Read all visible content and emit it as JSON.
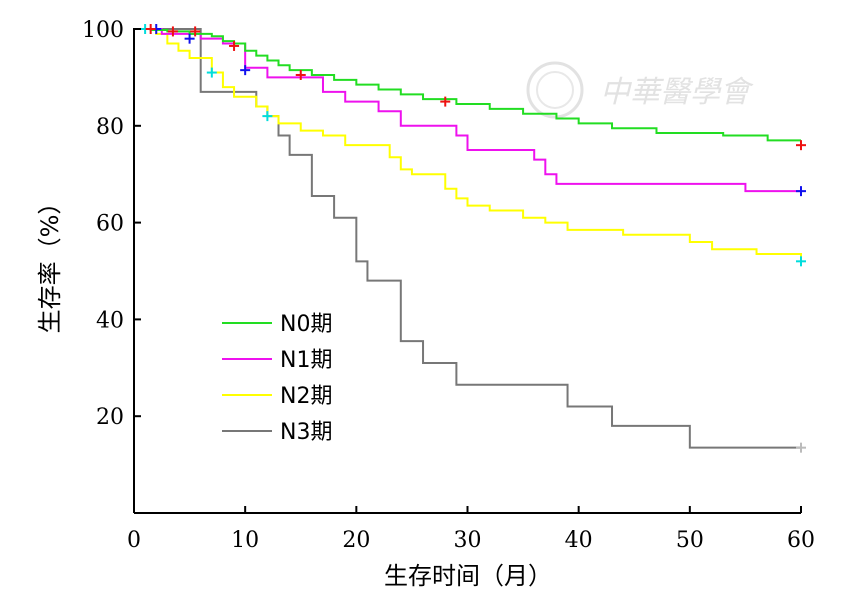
{
  "chart_data": {
    "type": "line",
    "title": "",
    "xlabel": "生存时间（月）",
    "ylabel": "生存率（%）",
    "xlim": [
      0,
      60
    ],
    "ylim": [
      0,
      100
    ],
    "xticks": [
      0,
      10,
      20,
      30,
      40,
      50,
      60
    ],
    "yticks": [
      20,
      40,
      60,
      80,
      100
    ],
    "grid": false,
    "legend_position": "lower-left",
    "watermark": "中華醫學會",
    "series": [
      {
        "name": "N0期",
        "color": "#22dd22",
        "censor_color": "#ee1111",
        "steps": [
          [
            0,
            100
          ],
          [
            1.5,
            99.8
          ],
          [
            3,
            99.5
          ],
          [
            5,
            99.0
          ],
          [
            7,
            98.5
          ],
          [
            8,
            97.5
          ],
          [
            9,
            97
          ],
          [
            10,
            95.5
          ],
          [
            11,
            94.5
          ],
          [
            12,
            93.5
          ],
          [
            13,
            92.5
          ],
          [
            14,
            91.5
          ],
          [
            16,
            90.5
          ],
          [
            18,
            89.5
          ],
          [
            20,
            88.5
          ],
          [
            22,
            87.5
          ],
          [
            24,
            86.5
          ],
          [
            26,
            85.5
          ],
          [
            29,
            84.5
          ],
          [
            32,
            83.5
          ],
          [
            35,
            82.5
          ],
          [
            38,
            81.5
          ],
          [
            40,
            80.5
          ],
          [
            43,
            79.5
          ],
          [
            47,
            78.5
          ],
          [
            53,
            78
          ],
          [
            57,
            77
          ],
          [
            60,
            77
          ]
        ],
        "censored": [
          [
            1.5,
            100
          ],
          [
            3.5,
            99.5
          ],
          [
            5.5,
            99.5
          ],
          [
            9,
            96.5
          ],
          [
            15,
            90.5
          ],
          [
            28,
            85
          ],
          [
            60,
            76
          ]
        ]
      },
      {
        "name": "N1期",
        "color": "#ee11ee",
        "censor_color": "#1111ee",
        "steps": [
          [
            0,
            100
          ],
          [
            2.5,
            99
          ],
          [
            6,
            98
          ],
          [
            8,
            97
          ],
          [
            10,
            92
          ],
          [
            12,
            90
          ],
          [
            17,
            87
          ],
          [
            19,
            85
          ],
          [
            22,
            83
          ],
          [
            24,
            80
          ],
          [
            29,
            78
          ],
          [
            30,
            75
          ],
          [
            34,
            75
          ],
          [
            36,
            73
          ],
          [
            37,
            70
          ],
          [
            38,
            68
          ],
          [
            55,
            68
          ],
          [
            55,
            66.5
          ],
          [
            60,
            66.5
          ]
        ],
        "censored": [
          [
            2,
            100
          ],
          [
            5,
            98
          ],
          [
            10,
            91.5
          ],
          [
            60,
            66.5
          ]
        ]
      },
      {
        "name": "N2期",
        "color": "#ffff00",
        "censor_color": "#00dddd",
        "steps": [
          [
            0,
            100
          ],
          [
            2,
            99
          ],
          [
            3,
            97
          ],
          [
            4,
            95.5
          ],
          [
            5,
            94
          ],
          [
            7,
            91
          ],
          [
            8,
            88
          ],
          [
            9,
            86
          ],
          [
            11,
            84
          ],
          [
            12,
            82
          ],
          [
            13,
            80.5
          ],
          [
            15,
            79
          ],
          [
            17,
            78
          ],
          [
            19,
            76
          ],
          [
            23,
            73.5
          ],
          [
            24,
            71
          ],
          [
            25,
            70
          ],
          [
            28,
            67
          ],
          [
            29,
            65
          ],
          [
            30,
            63.5
          ],
          [
            32,
            62.5
          ],
          [
            35,
            61
          ],
          [
            37,
            60
          ],
          [
            39,
            58.5
          ],
          [
            44,
            57.5
          ],
          [
            50,
            56
          ],
          [
            52,
            54.5
          ],
          [
            56,
            53.5
          ],
          [
            60,
            52
          ]
        ],
        "censored": [
          [
            1,
            100
          ],
          [
            7,
            91
          ],
          [
            12,
            82
          ],
          [
            60,
            52
          ]
        ]
      },
      {
        "name": "N3期",
        "color": "#777777",
        "censor_color": "#bbbbbb",
        "steps": [
          [
            0,
            100
          ],
          [
            6,
            100
          ],
          [
            6,
            87
          ],
          [
            11,
            87
          ],
          [
            11,
            84
          ],
          [
            12,
            82
          ],
          [
            13,
            78
          ],
          [
            14,
            74
          ],
          [
            16,
            65.5
          ],
          [
            18,
            65.5
          ],
          [
            18,
            61
          ],
          [
            20,
            61
          ],
          [
            20,
            52
          ],
          [
            21,
            48
          ],
          [
            24,
            48
          ],
          [
            24,
            35.5
          ],
          [
            26,
            35.5
          ],
          [
            26,
            31
          ],
          [
            29,
            31
          ],
          [
            29,
            26.5
          ],
          [
            39,
            26.5
          ],
          [
            39,
            22
          ],
          [
            43,
            22
          ],
          [
            43,
            18
          ],
          [
            50,
            18
          ],
          [
            50,
            13.5
          ],
          [
            60,
            13.5
          ]
        ],
        "censored": [
          [
            60,
            13.5
          ]
        ]
      }
    ]
  }
}
